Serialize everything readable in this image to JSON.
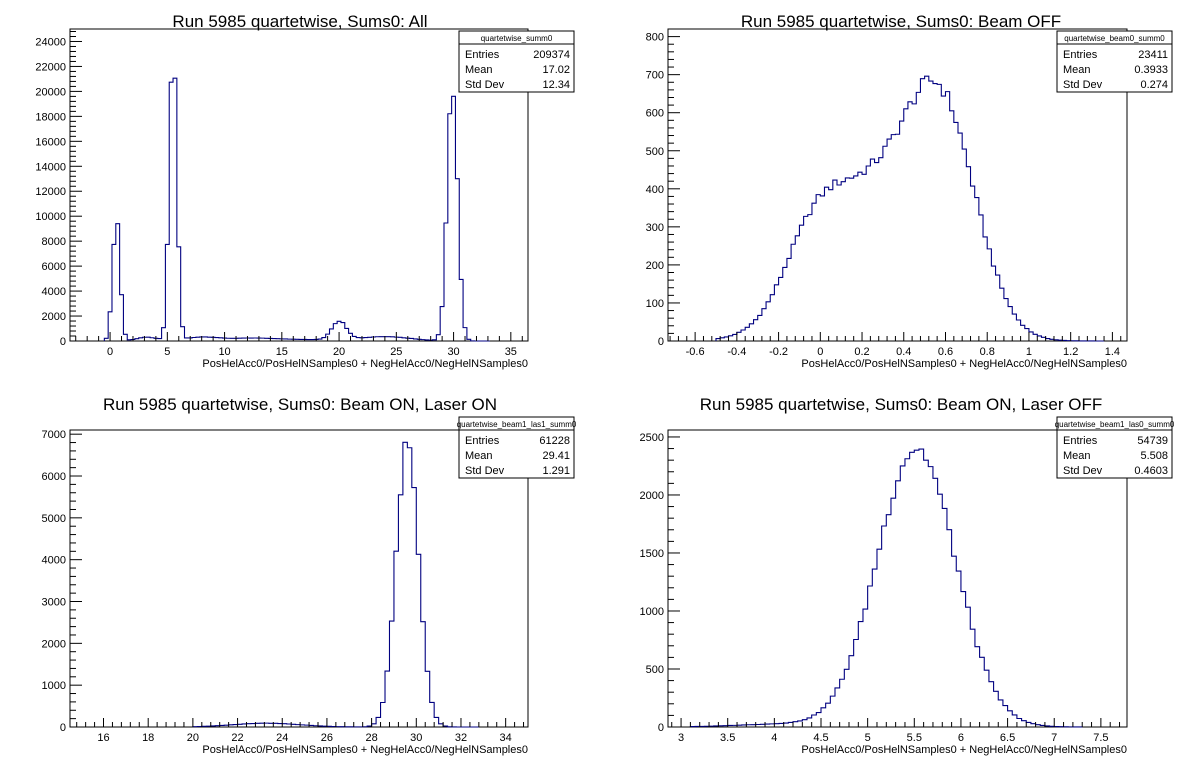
{
  "chart_data": [
    {
      "type": "histogram",
      "title": "Run 5985 quartetwise, Sums0: All",
      "xlabel": "PosHelAcc0/PosHelNSamples0 + NegHelAcc0/NegHelNSamples0",
      "ylabel": "",
      "xlim": [
        -3.5,
        36.5
      ],
      "ylim": [
        0,
        25000
      ],
      "xticks": [
        0,
        5,
        10,
        15,
        20,
        25,
        30,
        35
      ],
      "yticks": [
        0,
        2000,
        4000,
        6000,
        8000,
        10000,
        12000,
        14000,
        16000,
        18000,
        20000,
        22000,
        24000
      ],
      "stats": {
        "name": "quartetwise_summ0",
        "entries": "209374",
        "mean": "17.02",
        "std_dev": "12.34"
      },
      "peaks": [
        {
          "center": 0.55,
          "amplitude": 10000,
          "sigma": 0.32
        },
        {
          "center": 5.5,
          "amplitude": 23600,
          "sigma": 0.33
        },
        {
          "center": 29.9,
          "amplitude": 20500,
          "sigma": 0.45
        },
        {
          "center": 20.0,
          "amplitude": 1500,
          "sigma": 0.65
        },
        {
          "center": 8.0,
          "amplitude": 300,
          "sigma": 1.4
        },
        {
          "center": 12.0,
          "amplitude": 180,
          "sigma": 2.0
        },
        {
          "center": 16.0,
          "amplitude": 120,
          "sigma": 3.0
        },
        {
          "center": 24.0,
          "amplitude": 350,
          "sigma": 2.2
        },
        {
          "center": 3.2,
          "amplitude": 300,
          "sigma": 0.9
        }
      ],
      "range": [
        -0.5,
        33.0
      ],
      "bin_width": 0.3333
    },
    {
      "type": "histogram",
      "title": "Run 5985 quartetwise, Sums0: Beam OFF",
      "xlabel": "PosHelAcc0/PosHelNSamples0 + NegHelAcc0/NegHelNSamples0",
      "ylabel": "",
      "xlim": [
        -0.73,
        1.47
      ],
      "ylim": [
        0,
        820
      ],
      "xticks": [
        -0.6,
        -0.4,
        -0.2,
        0,
        0.2,
        0.4,
        0.6,
        0.8,
        1,
        1.2,
        1.4
      ],
      "yticks": [
        0,
        100,
        200,
        300,
        400,
        500,
        600,
        700,
        800
      ],
      "stats": {
        "name": "quartetwise_beam0_summ0",
        "entries": "23411",
        "mean": "0.3933",
        "std_dev": "0.274"
      },
      "peaks": [
        {
          "center": 0.58,
          "amplitude": 560,
          "sigma": 0.17
        },
        {
          "center": 0.2,
          "amplitude": 380,
          "sigma": 0.24
        },
        {
          "center": -0.05,
          "amplitude": 120,
          "sigma": 0.13
        }
      ],
      "range": [
        -0.5,
        1.35
      ],
      "bin_width": 0.02
    },
    {
      "type": "histogram",
      "title": "Run 5985 quartetwise, Sums0: Beam ON, Laser ON",
      "xlabel": "PosHelAcc0/PosHelNSamples0 + NegHelAcc0/NegHelNSamples0",
      "ylabel": "",
      "xlim": [
        14.5,
        35.0
      ],
      "ylim": [
        0,
        7100
      ],
      "xticks": [
        16,
        18,
        20,
        22,
        24,
        26,
        28,
        30,
        32,
        34
      ],
      "yticks": [
        0,
        1000,
        2000,
        3000,
        4000,
        5000,
        6000,
        7000
      ],
      "stats": {
        "name": "quartetwise_beam1_las1_summ0",
        "entries": "61228",
        "mean": "29.41",
        "std_dev": "1.291"
      },
      "peaks": [
        {
          "center": 29.6,
          "amplitude": 6750,
          "sigma": 0.5
        },
        {
          "center": 23.3,
          "amplitude": 90,
          "sigma": 1.5
        }
      ],
      "range": [
        20.0,
        32.8
      ],
      "bin_width": 0.2
    },
    {
      "type": "histogram",
      "title": "Run 5985 quartetwise, Sums0: Beam ON, Laser OFF",
      "xlabel": "PosHelAcc0/PosHelNSamples0 + NegHelAcc0/NegHelNSamples0",
      "ylabel": "",
      "xlim": [
        2.86,
        7.78
      ],
      "ylim": [
        0,
        2560
      ],
      "xticks": [
        3,
        3.5,
        4,
        4.5,
        5,
        5.5,
        6,
        6.5,
        7,
        7.5
      ],
      "yticks": [
        0,
        500,
        1000,
        1500,
        2000,
        2500
      ],
      "stats": {
        "name": "quartetwise_beam1_las0_summ0",
        "entries": "54739",
        "mean": "5.508",
        "std_dev": "0.4603"
      },
      "peaks": [
        {
          "center": 5.52,
          "amplitude": 2400,
          "sigma": 0.42
        },
        {
          "center": 4.1,
          "amplitude": 25,
          "sigma": 0.5
        }
      ],
      "range": [
        3.1,
        7.3
      ],
      "bin_width": 0.05
    }
  ],
  "stat_labels": {
    "entries": "Entries",
    "mean": "Mean",
    "std_dev": "Std Dev"
  },
  "colors": {
    "line": "#000080",
    "axis": "#000000",
    "background": "#ffffff"
  }
}
